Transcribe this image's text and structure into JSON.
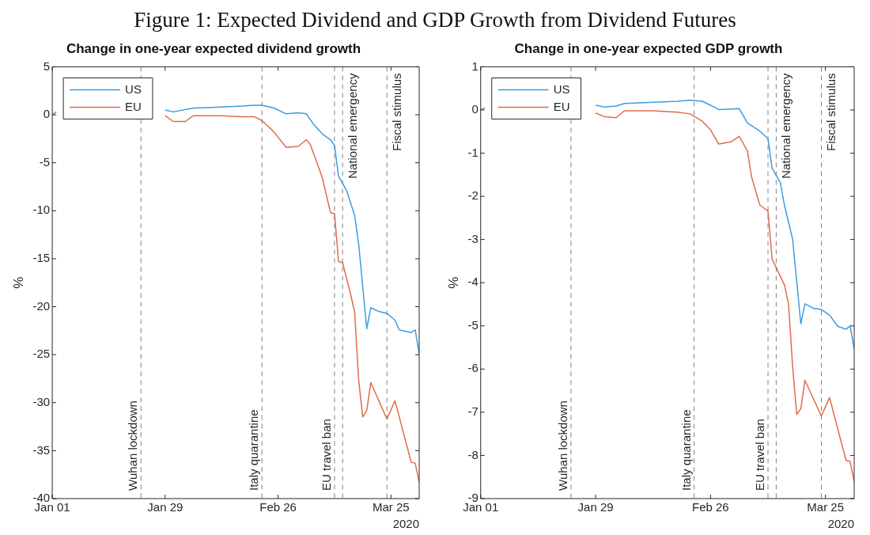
{
  "chart_data": [
    {
      "type": "line",
      "title": "Change in one-year expected dividend growth",
      "ylabel": "%",
      "xlabel": "2020",
      "annotations": [
        "Figure 1: Expected Dividend and GDP Growth from Dividend Futures"
      ],
      "xlim": [
        "2020-01-01",
        "2020-04-01"
      ],
      "xticks": [
        {
          "value": "2020-01-01",
          "label": "Jan 01"
        },
        {
          "value": "2020-01-29",
          "label": "Jan 29"
        },
        {
          "value": "2020-02-26",
          "label": "Feb 26"
        },
        {
          "value": "2020-03-25",
          "label": "Mar 25"
        }
      ],
      "ylim": [
        -40,
        5
      ],
      "yticks": [
        -40,
        -35,
        -30,
        -25,
        -20,
        -15,
        -10,
        -5,
        0,
        5
      ],
      "legend": "top left",
      "grid": false,
      "line_style": "solid",
      "series": [
        {
          "name": "US",
          "color": "#3d9be0",
          "x": [
            "2020-01-01",
            "2020-01-02",
            "2020-01-15",
            "2020-01-29",
            "2020-01-31",
            "2020-02-05",
            "2020-02-12",
            "2020-02-17",
            "2020-02-20",
            "2020-02-22",
            "2020-02-25",
            "2020-02-28",
            "2020-03-02",
            "2020-03-04",
            "2020-03-06",
            "2020-03-08",
            "2020-03-10",
            "2020-03-11",
            "2020-03-12",
            "2020-03-14",
            "2020-03-16",
            "2020-03-17",
            "2020-03-19",
            "2020-03-20",
            "2020-03-22",
            "2020-03-24",
            "2020-03-26",
            "2020-03-27",
            "2020-03-30",
            "2020-03-31",
            "2020-04-01"
          ],
          "values": [
            0,
            0.3,
            null,
            0.5,
            0.3,
            0.7,
            0.8,
            0.9,
            1.0,
            1.0,
            0.7,
            0.1,
            0.2,
            0.1,
            -1.1,
            -2.0,
            -2.6,
            -3.2,
            -6.4,
            -7.9,
            -10.5,
            -13.5,
            -22.3,
            -20.1,
            -20.5,
            -20.7,
            -21.4,
            -22.4,
            -22.7,
            -22.4,
            -24.9
          ]
        },
        {
          "name": "EU",
          "color": "#e06c48",
          "x": [
            "2020-01-29",
            "2020-01-31",
            "2020-02-03",
            "2020-02-05",
            "2020-02-12",
            "2020-02-17",
            "2020-02-20",
            "2020-02-22",
            "2020-02-25",
            "2020-02-28",
            "2020-03-02",
            "2020-03-04",
            "2020-03-05",
            "2020-03-08",
            "2020-03-10",
            "2020-03-11",
            "2020-03-12",
            "2020-03-13",
            "2020-03-15",
            "2020-03-16",
            "2020-03-17",
            "2020-03-18",
            "2020-03-19",
            "2020-03-20",
            "2020-03-24",
            "2020-03-26",
            "2020-03-30",
            "2020-03-31",
            "2020-04-01"
          ],
          "values": [
            -0.1,
            -0.7,
            -0.7,
            -0.1,
            -0.1,
            -0.2,
            -0.2,
            -0.6,
            -1.8,
            -3.4,
            -3.3,
            -2.6,
            -3.1,
            -6.6,
            -10.2,
            -10.3,
            -15.3,
            -15.4,
            -18.7,
            -20.6,
            -27.7,
            -31.5,
            -30.8,
            -27.9,
            -31.7,
            -29.8,
            -36.2,
            -36.3,
            -38.3
          ]
        }
      ],
      "ref_lines": [
        {
          "axis": "x",
          "value": "2020-01-23",
          "label": "Wuhan lockdown",
          "color": "#808080",
          "line_style": "dashed"
        },
        {
          "axis": "x",
          "value": "2020-02-22",
          "label": "Italy quarantine",
          "color": "#808080",
          "line_style": "dashed"
        },
        {
          "axis": "x",
          "value": "2020-03-11",
          "label": "EU travel ban",
          "color": "#808080",
          "line_style": "dashed"
        },
        {
          "axis": "x",
          "value": "2020-03-13",
          "label": "National emergency",
          "color": "#808080",
          "line_style": "dashed"
        },
        {
          "axis": "x",
          "value": "2020-03-24",
          "label": "Fiscal stimulus",
          "color": "#808080",
          "line_style": "dashed"
        }
      ]
    },
    {
      "type": "line",
      "title": "Change in one-year expected GDP growth",
      "ylabel": "%",
      "xlabel": "2020",
      "xlim": [
        "2020-01-01",
        "2020-04-01"
      ],
      "xticks": [
        {
          "value": "2020-01-01",
          "label": "Jan 01"
        },
        {
          "value": "2020-01-29",
          "label": "Jan 29"
        },
        {
          "value": "2020-02-26",
          "label": "Feb 26"
        },
        {
          "value": "2020-03-25",
          "label": "Mar 25"
        }
      ],
      "ylim": [
        -9,
        1
      ],
      "yticks": [
        -9,
        -8,
        -7,
        -6,
        -5,
        -4,
        -3,
        -2,
        -1,
        0,
        1
      ],
      "legend": "top left",
      "grid": false,
      "line_style": "solid",
      "series": [
        {
          "name": "US",
          "color": "#3d9be0",
          "x": [
            "2020-01-01",
            "2020-01-02",
            "2020-01-15",
            "2020-01-29",
            "2020-01-31",
            "2020-02-03",
            "2020-02-05",
            "2020-02-12",
            "2020-02-18",
            "2020-02-21",
            "2020-02-24",
            "2020-02-26",
            "2020-02-28",
            "2020-03-04",
            "2020-03-06",
            "2020-03-09",
            "2020-03-11",
            "2020-03-12",
            "2020-03-14",
            "2020-03-15",
            "2020-03-17",
            "2020-03-19",
            "2020-03-20",
            "2020-03-22",
            "2020-03-24",
            "2020-03-26",
            "2020-03-28",
            "2020-03-30",
            "2020-03-31",
            "2020-04-01"
          ],
          "values": [
            0,
            0.05,
            null,
            0.11,
            0.07,
            0.09,
            0.15,
            0.18,
            0.2,
            0.23,
            0.2,
            0.11,
            0.01,
            0.03,
            -0.3,
            -0.49,
            -0.66,
            -1.35,
            -1.68,
            -2.2,
            -2.99,
            -4.95,
            -4.49,
            -4.59,
            -4.62,
            -4.75,
            -5.01,
            -5.08,
            -5.0,
            -5.54
          ]
        },
        {
          "name": "EU",
          "color": "#e06c48",
          "x": [
            "2020-01-29",
            "2020-01-31",
            "2020-02-03",
            "2020-02-05",
            "2020-02-12",
            "2020-02-18",
            "2020-02-21",
            "2020-02-24",
            "2020-02-26",
            "2020-02-28",
            "2020-03-02",
            "2020-03-04",
            "2020-03-06",
            "2020-03-07",
            "2020-03-09",
            "2020-03-11",
            "2020-03-12",
            "2020-03-15",
            "2020-03-16",
            "2020-03-17",
            "2020-03-18",
            "2020-03-19",
            "2020-03-20",
            "2020-03-24",
            "2020-03-26",
            "2020-03-30",
            "2020-03-31",
            "2020-04-01"
          ],
          "values": [
            -0.07,
            -0.15,
            -0.18,
            -0.02,
            -0.02,
            -0.05,
            -0.09,
            -0.26,
            -0.46,
            -0.79,
            -0.74,
            -0.61,
            -0.95,
            -1.55,
            -2.2,
            -2.34,
            -3.45,
            -4.05,
            -4.49,
            -5.93,
            -7.05,
            -6.92,
            -6.26,
            -7.09,
            -6.66,
            -8.11,
            -8.14,
            -8.6
          ]
        }
      ],
      "ref_lines": [
        {
          "axis": "x",
          "value": "2020-01-23",
          "label": "Wuhan lockdown",
          "color": "#808080",
          "line_style": "dashed"
        },
        {
          "axis": "x",
          "value": "2020-02-22",
          "label": "Italy quarantine",
          "color": "#808080",
          "line_style": "dashed"
        },
        {
          "axis": "x",
          "value": "2020-03-11",
          "label": "EU travel ban",
          "color": "#808080",
          "line_style": "dashed"
        },
        {
          "axis": "x",
          "value": "2020-03-13",
          "label": "National emergency",
          "color": "#808080",
          "line_style": "dashed"
        },
        {
          "axis": "x",
          "value": "2020-03-24",
          "label": "Fiscal stimulus",
          "color": "#808080",
          "line_style": "dashed"
        }
      ]
    }
  ]
}
